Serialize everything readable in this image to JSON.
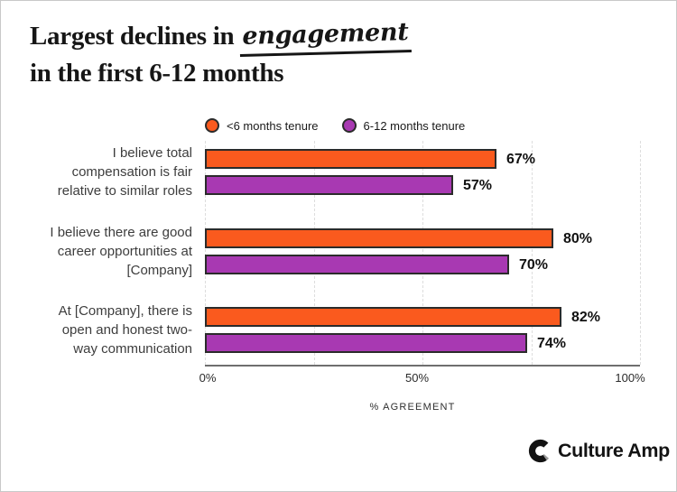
{
  "title": {
    "prefix": "Largest declines in",
    "highlight": "engagement",
    "line2": "in the first 6-12 months"
  },
  "legend": {
    "items": [
      {
        "label": "<6 months tenure",
        "color": "#FA5A1E"
      },
      {
        "label": "6-12 months tenure",
        "color": "#A839B2"
      }
    ]
  },
  "chart_data": {
    "type": "bar",
    "orientation": "horizontal",
    "title": "Largest declines in engagement in the first 6-12 months",
    "categories": [
      "I believe total compensation is fair relative to similar roles",
      "I believe there are good career opportunities at [Company]",
      "At [Company], there is open and honest two-way communication"
    ],
    "category_label_lines": [
      [
        "I believe total",
        "compensation is fair",
        "relative to similar roles"
      ],
      [
        "I believe there are good",
        "career opportunities at",
        "[Company]"
      ],
      [
        "At [Company], there is",
        "open and honest two-",
        "way communication"
      ]
    ],
    "series": [
      {
        "name": "<6 months tenure",
        "color": "#FA5A1E",
        "values": [
          67,
          80,
          82
        ]
      },
      {
        "name": "6-12 months tenure",
        "color": "#A839B2",
        "values": [
          57,
          70,
          74
        ]
      }
    ],
    "value_labels": [
      [
        "67%",
        "80%",
        "82%"
      ],
      [
        "57%",
        "70%",
        "74%"
      ]
    ],
    "xlabel": "% AGREEMENT",
    "xlim": [
      0,
      100
    ],
    "xticks": [
      {
        "value": 0,
        "label": "0%"
      },
      {
        "value": 50,
        "label": "50%"
      },
      {
        "value": 100,
        "label": "100%"
      }
    ],
    "gridline_values": [
      0,
      25,
      50,
      75,
      100
    ],
    "grid": "dashed-vertical",
    "legend_position": "top",
    "bar_border_color": "#2b2b2b",
    "value_suffix": "%"
  },
  "footer": {
    "brand": "Culture Amp"
  },
  "colors": {
    "orange": "#FA5A1E",
    "purple": "#A839B2",
    "bar_border": "#2b2b2b",
    "axis_line": "#6f6f6f",
    "gridline": "#dddddd",
    "title_text": "#161616",
    "category_text": "#3d3d3d"
  }
}
